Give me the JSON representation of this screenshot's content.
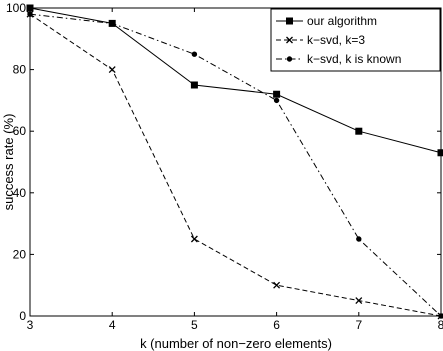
{
  "chart_data": {
    "type": "line",
    "title": "",
    "xlabel": "k (number of non−zero elements)",
    "ylabel": "success rate (%)",
    "xlim": [
      3,
      8
    ],
    "ylim": [
      0,
      100
    ],
    "x_ticks": [
      "3",
      "4",
      "5",
      "6",
      "7",
      "8"
    ],
    "y_ticks": [
      "0",
      "20",
      "40",
      "60",
      "80",
      "100"
    ],
    "grid": false,
    "legend_position": "top-right",
    "x": [
      3,
      4,
      5,
      6,
      7,
      8
    ],
    "series": [
      {
        "name": "our algorithm",
        "values": [
          100,
          95,
          75,
          72,
          60,
          53
        ],
        "line_style": "solid",
        "marker": "square",
        "color": "#000000"
      },
      {
        "name": "k−svd, k=3",
        "values": [
          98,
          80,
          25,
          10,
          5,
          0
        ],
        "line_style": "dashed",
        "marker": "x",
        "color": "#000000"
      },
      {
        "name": "k−svd, k is known",
        "values": [
          98,
          95,
          85,
          70,
          25,
          0
        ],
        "line_style": "dashdot",
        "marker": "dot",
        "color": "#000000"
      }
    ]
  }
}
